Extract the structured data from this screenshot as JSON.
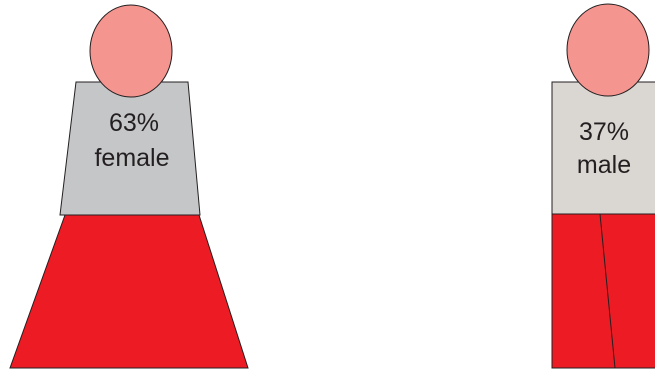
{
  "figures": [
    {
      "id": "female",
      "percent": 63,
      "percent_label": "63%",
      "label": "female",
      "head_color": "#f4958f",
      "torso_color": "#c5c6c8",
      "lower_color": "#ed1c24"
    },
    {
      "id": "male",
      "percent": 37,
      "percent_label": "37%",
      "label": "male",
      "head_color": "#f4958f",
      "torso_color": "#dad6d2",
      "lower_color": "#ed1c24"
    }
  ]
}
